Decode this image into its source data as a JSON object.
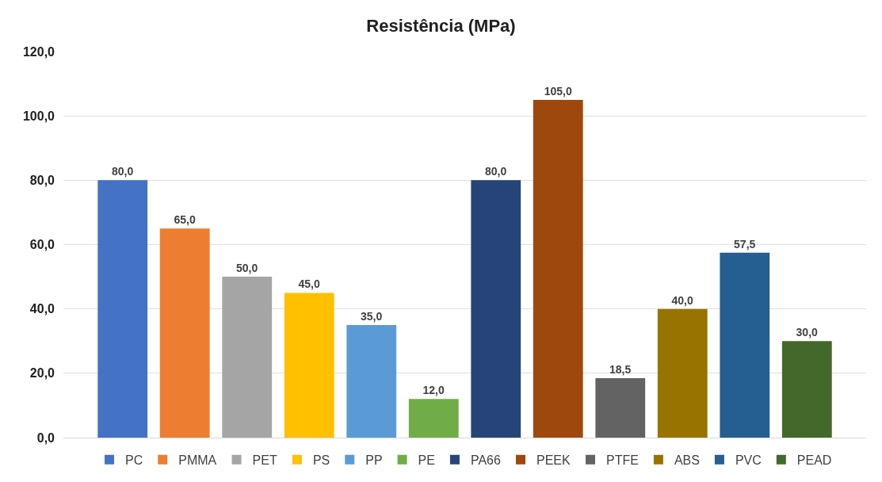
{
  "chart_data": {
    "type": "bar",
    "title": "Resistência (MPa)",
    "categories": [
      null
    ],
    "series": [
      {
        "name": "PC",
        "color": "#4472c4",
        "values": [
          80
        ],
        "value_labels": [
          "80,0"
        ]
      },
      {
        "name": "PMMA",
        "color": "#ed7d31",
        "values": [
          65
        ],
        "value_labels": [
          "65,0"
        ]
      },
      {
        "name": "PET",
        "color": "#a5a5a5",
        "values": [
          50
        ],
        "value_labels": [
          "50,0"
        ]
      },
      {
        "name": "PS",
        "color": "#ffc000",
        "values": [
          45
        ],
        "value_labels": [
          "45,0"
        ]
      },
      {
        "name": "PP",
        "color": "#5b9bd5",
        "values": [
          35
        ],
        "value_labels": [
          "35,0"
        ]
      },
      {
        "name": "PE",
        "color": "#70ad47",
        "values": [
          12
        ],
        "value_labels": [
          "12,0"
        ]
      },
      {
        "name": "PA66",
        "color": "#264478",
        "values": [
          80
        ],
        "value_labels": [
          "80,0"
        ]
      },
      {
        "name": "PEEK",
        "color": "#9e480e",
        "values": [
          105
        ],
        "value_labels": [
          "105,0"
        ]
      },
      {
        "name": "PTFE",
        "color": "#636363",
        "values": [
          18.5
        ],
        "value_labels": [
          "18,5"
        ]
      },
      {
        "name": "ABS",
        "color": "#997300",
        "values": [
          40
        ],
        "value_labels": [
          "40,0"
        ]
      },
      {
        "name": "PVC",
        "color": "#255e91",
        "values": [
          57.5
        ],
        "value_labels": [
          "57,5"
        ]
      },
      {
        "name": "PEAD",
        "color": "#43682b",
        "values": [
          30
        ],
        "value_labels": [
          "30,0"
        ]
      }
    ],
    "ylim": [
      0,
      120
    ],
    "yticks": [
      {
        "value": 0,
        "label": "0,0"
      },
      {
        "value": 20,
        "label": "20,0"
      },
      {
        "value": 40,
        "label": "40,0"
      },
      {
        "value": 60,
        "label": "60,0"
      },
      {
        "value": 80,
        "label": "80,0"
      },
      {
        "value": 100,
        "label": "100,0"
      },
      {
        "value": 120,
        "label": "120,0"
      }
    ],
    "grid": "y",
    "legend": "bottom",
    "tick_labels": "y"
  }
}
